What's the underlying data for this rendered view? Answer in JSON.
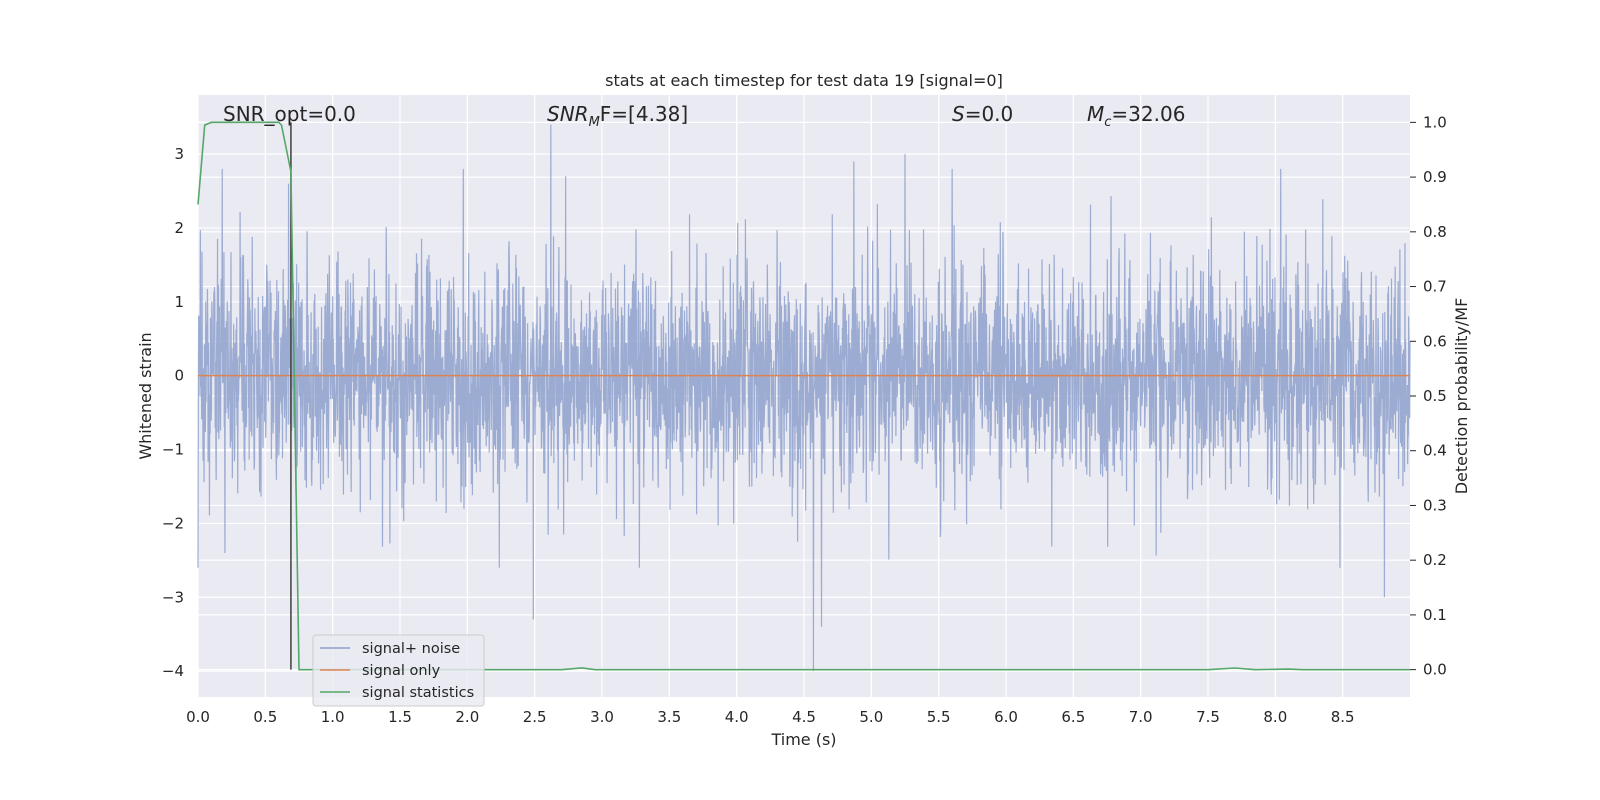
{
  "chart_data": {
    "type": "line",
    "title": "stats at each timestep for test data 19 [signal=0]",
    "xlabel": "Time (s)",
    "ylabel": "Whitened strain",
    "y2label": "Detection probability/MF",
    "xlim": [
      0.0,
      9.0
    ],
    "ylim": [
      -4.35,
      3.8
    ],
    "y2lim": [
      -0.05,
      1.05
    ],
    "xticks": [
      "0.0",
      "0.5",
      "1.0",
      "1.5",
      "2.0",
      "2.5",
      "3.0",
      "3.5",
      "4.0",
      "4.5",
      "5.0",
      "5.5",
      "6.0",
      "6.5",
      "7.0",
      "7.5",
      "8.0",
      "8.5"
    ],
    "yticks": [
      "3",
      "2",
      "1",
      "0",
      "−1",
      "−2",
      "−3",
      "−4"
    ],
    "y2ticks": [
      "1.0",
      "0.9",
      "0.8",
      "0.7",
      "0.6",
      "0.5",
      "0.4",
      "0.3",
      "0.2",
      "0.1",
      "0.0"
    ],
    "grid": true,
    "legend_position": "lower-left",
    "colors": {
      "noise": "#8da0cb",
      "signal": "#dd8452",
      "stats": "#55a868",
      "vline": "#404040",
      "background": "#eaeaf2",
      "grid": "#ffffff"
    },
    "annotations": {
      "snr_opt": "SNR_opt=0.0",
      "snr_mf_main": "SNR",
      "snr_mf_sub": "M",
      "snr_mf_rest": "F=[4.38]",
      "s_main": "S",
      "s_rest": "=0.0",
      "mc_main": "M",
      "mc_sub": "c",
      "mc_rest": "=32.06"
    },
    "vline_x": 0.69,
    "series": [
      {
        "name": "signal+ noise",
        "style": "noise",
        "typical_amplitude": 1.2,
        "peaks": [
          {
            "x": 0.18,
            "y": 2.8
          },
          {
            "x": 0.2,
            "y": -2.4
          },
          {
            "x": 1.97,
            "y": 2.8
          },
          {
            "x": 2.49,
            "y": -3.3
          },
          {
            "x": 2.62,
            "y": 3.4
          },
          {
            "x": 2.73,
            "y": 2.7
          },
          {
            "x": 4.57,
            "y": -4.0
          },
          {
            "x": 4.63,
            "y": -3.4
          },
          {
            "x": 4.87,
            "y": 2.9
          },
          {
            "x": 5.25,
            "y": 3.0
          },
          {
            "x": 5.6,
            "y": 2.8
          },
          {
            "x": 8.04,
            "y": 2.8
          },
          {
            "x": 8.81,
            "y": -3.0
          },
          {
            "x": 8.48,
            "y": -2.6
          }
        ]
      },
      {
        "name": "signal only",
        "style": "signal",
        "x": [
          0.0,
          9.0
        ],
        "y": [
          0.0,
          0.0
        ]
      },
      {
        "name": "signal statistics",
        "style": "stats",
        "x": [
          0.0,
          0.05,
          0.1,
          0.2,
          0.3,
          0.4,
          0.5,
          0.6,
          0.62,
          0.69,
          0.75,
          0.8,
          2.7,
          2.85,
          2.95,
          7.5,
          7.7,
          7.85,
          8.1,
          8.2,
          8.5,
          9.0
        ],
        "y": [
          0.85,
          0.995,
          1.0,
          1.0,
          1.0,
          1.0,
          1.0,
          1.0,
          0.995,
          0.91,
          0.0,
          0.0,
          0.0,
          0.003,
          0.0,
          0.0,
          0.003,
          0.0,
          0.001,
          0.0,
          0.0,
          0.0
        ]
      }
    ]
  }
}
